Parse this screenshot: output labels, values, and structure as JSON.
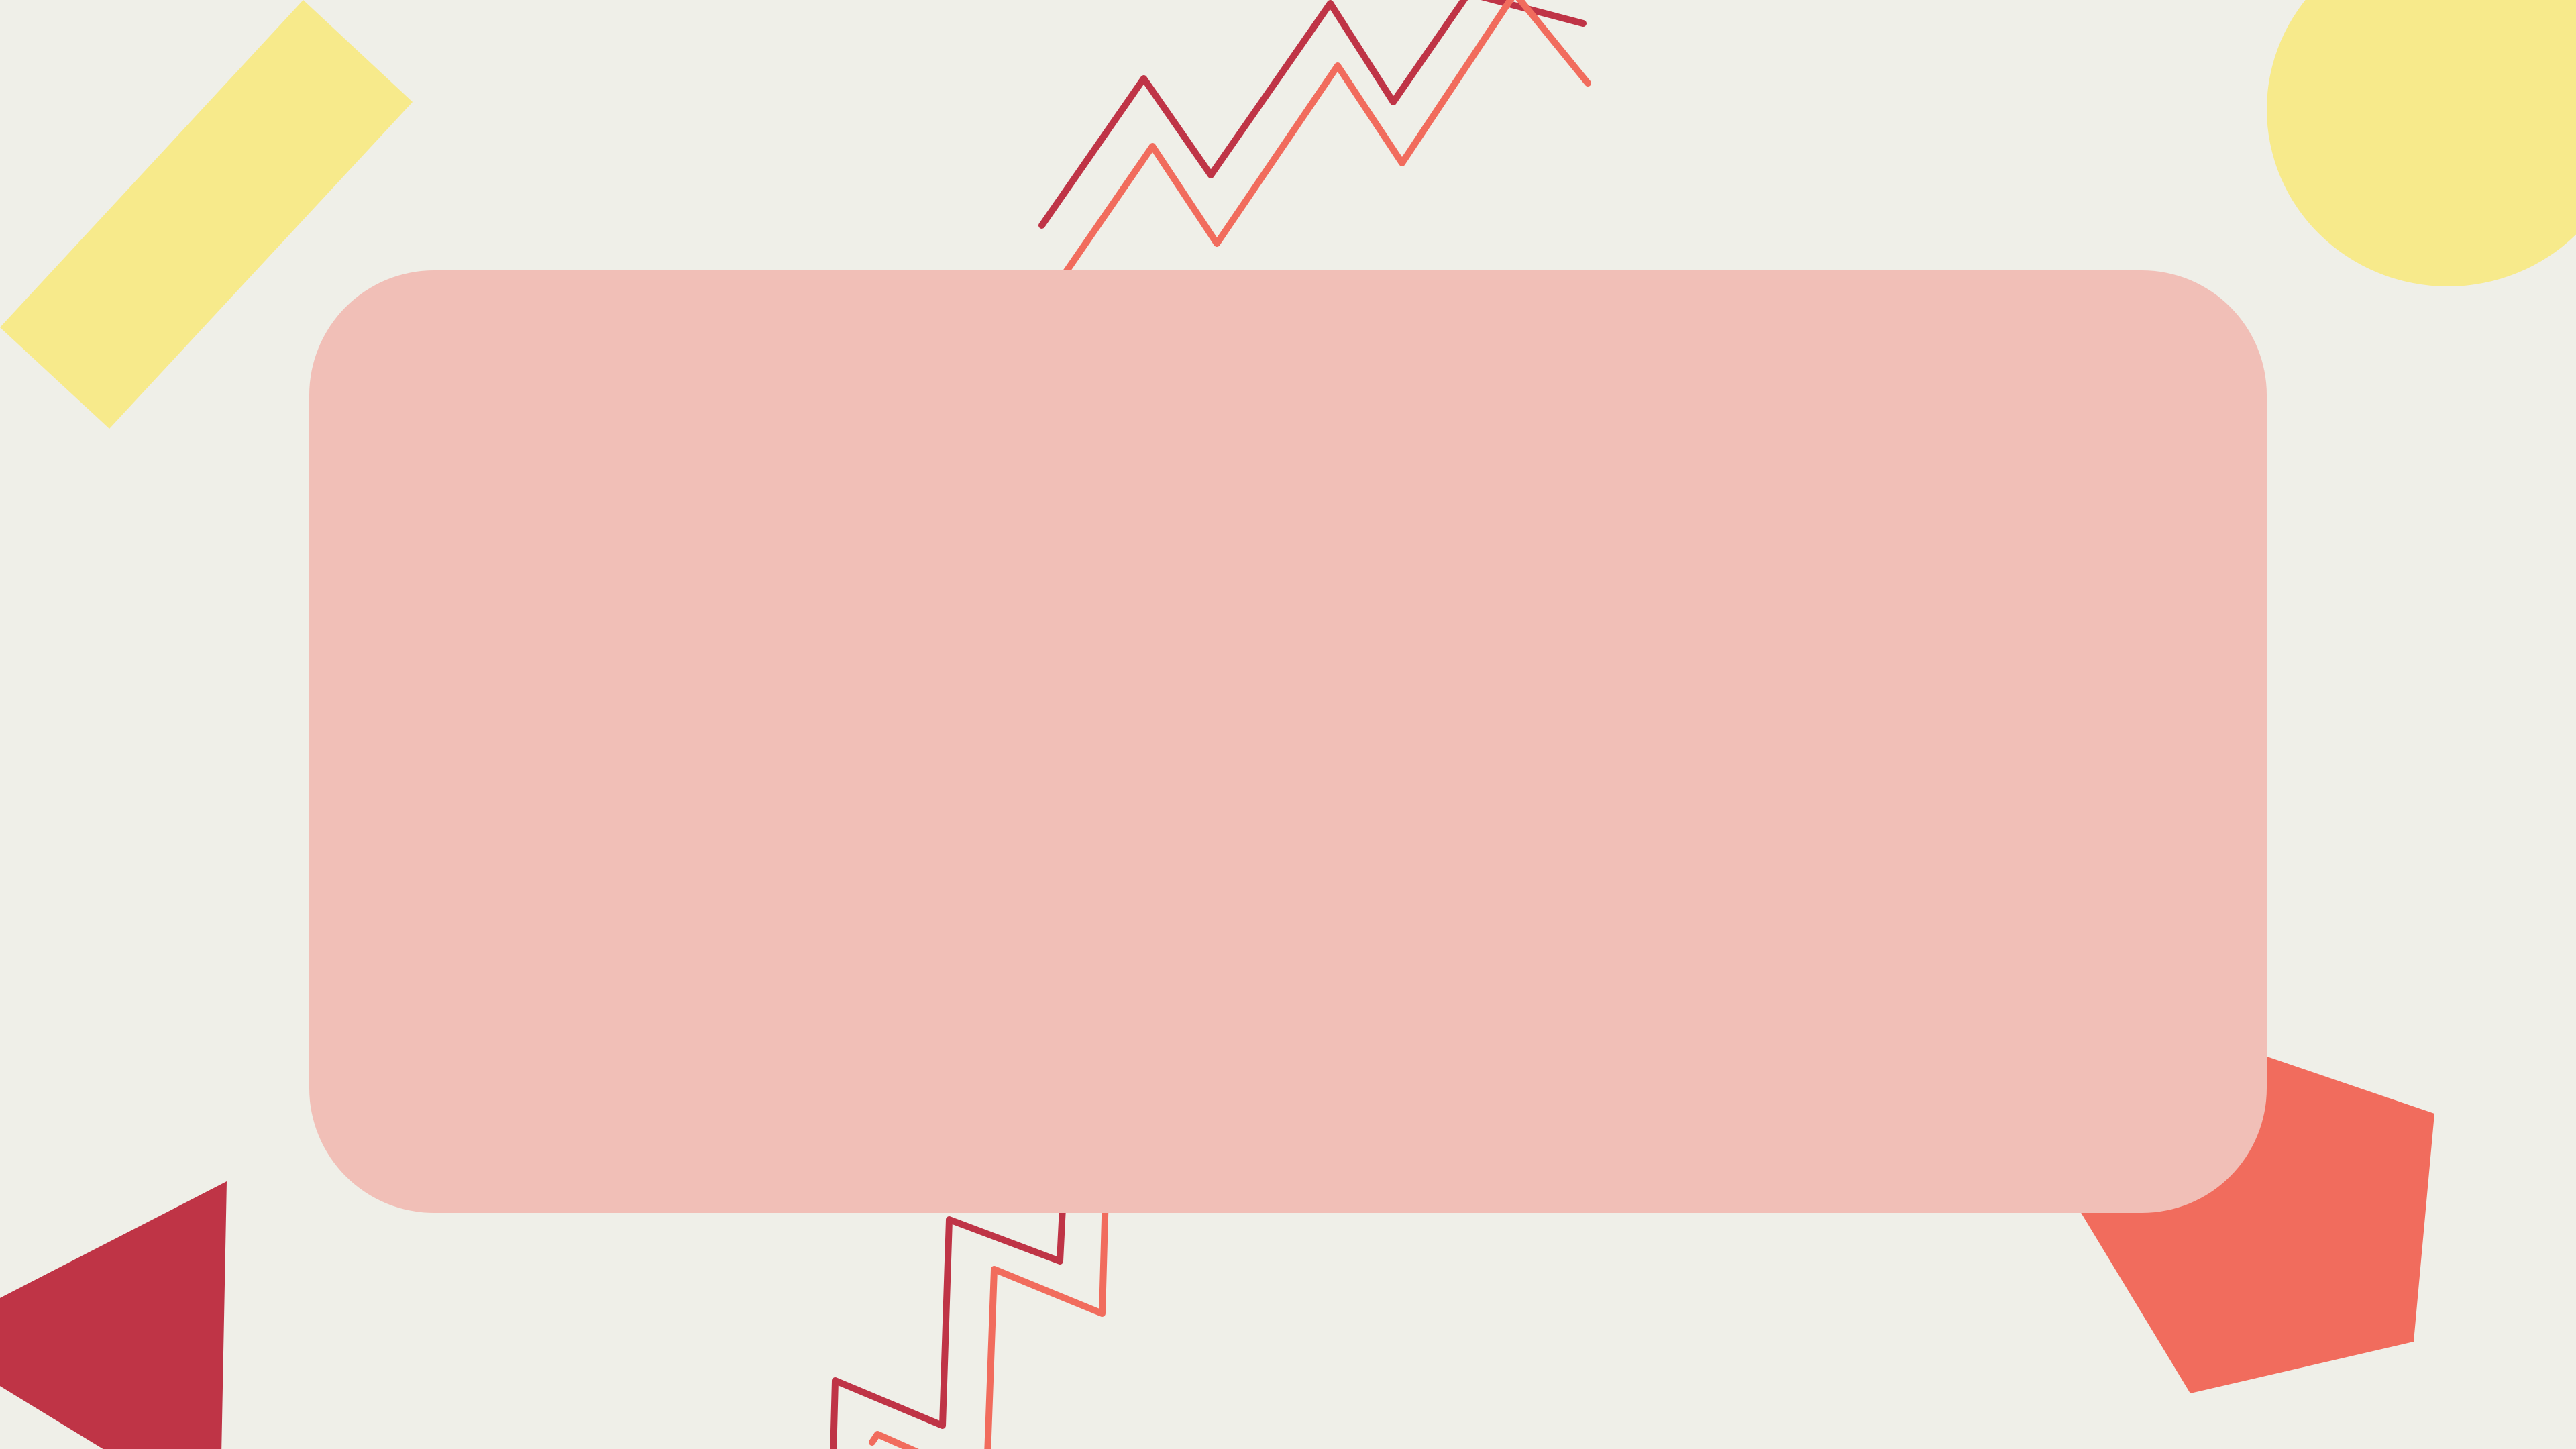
{
  "slide": {
    "background_color": "#EFEFE8",
    "card_color": "#F1BFB7",
    "palette": {
      "yellow": "#F7EA8B",
      "crimson": "#BF3446",
      "coral": "#F16C5D"
    },
    "decorations": [
      "yellow-bar",
      "yellow-circle",
      "crimson-triangle",
      "coral-pentagon",
      "zigzag-top-crimson",
      "zigzag-top-coral",
      "zigzag-bottom-crimson",
      "zigzag-bottom-coral"
    ]
  }
}
